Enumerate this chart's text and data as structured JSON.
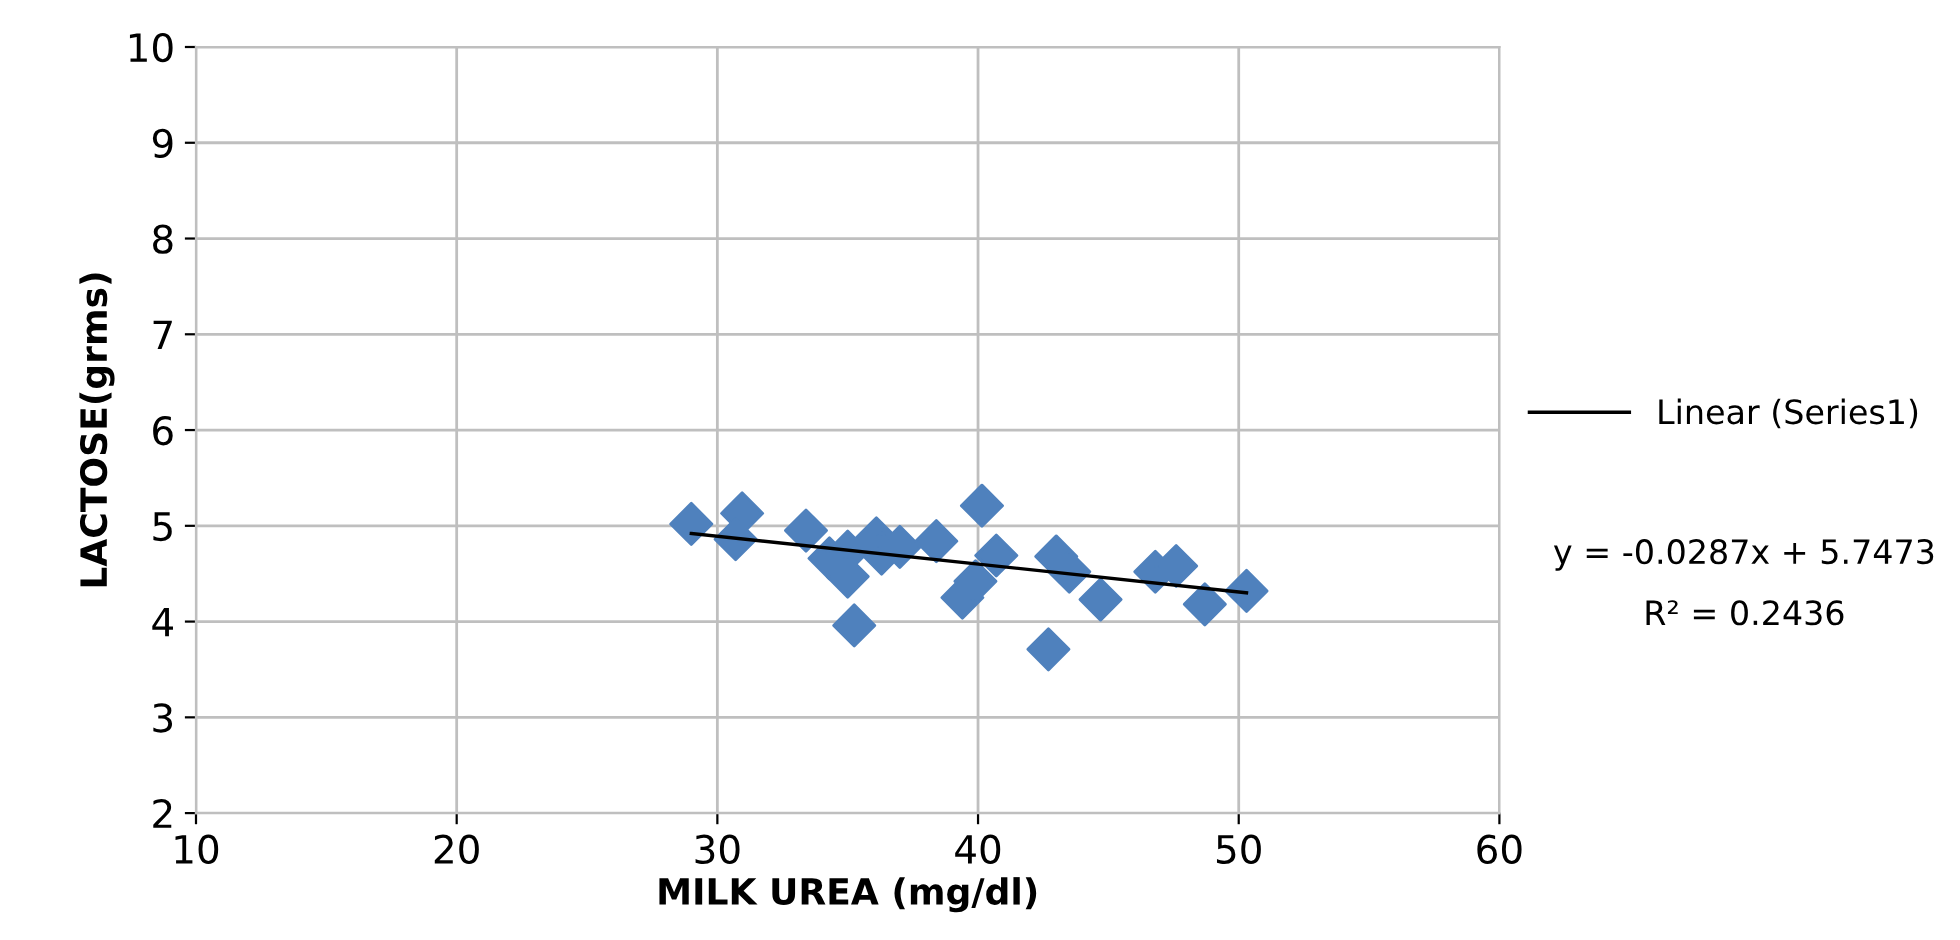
{
  "chart_data": {
    "type": "scatter",
    "xlabel": "MILK UREA (mg/dl)",
    "ylabel": "LACTOSE(grms)",
    "xlim": [
      10,
      60
    ],
    "xticks": [
      10,
      20,
      30,
      40,
      50,
      60
    ],
    "ylim": [
      2,
      10
    ],
    "yticks": [
      2,
      3,
      4,
      5,
      6,
      7,
      8,
      9,
      10
    ],
    "grid": true,
    "legend": "right",
    "marker": "diamond",
    "series": [
      {
        "color": "#4f81bd",
        "x": [
          29.0,
          30.95,
          30.7,
          33.4,
          34.3,
          35.0,
          35.0,
          35.25,
          36.1,
          36.3,
          37.0,
          38.4,
          39.4,
          40.15,
          39.9,
          40.7,
          42.7,
          43.0,
          43.5,
          44.7,
          46.8,
          47.6,
          48.7,
          50.3
        ],
        "values": [
          5.02,
          5.13,
          4.86,
          4.95,
          4.66,
          4.73,
          4.47,
          3.96,
          4.87,
          4.71,
          4.78,
          4.84,
          4.25,
          5.21,
          4.42,
          4.69,
          3.71,
          4.68,
          4.52,
          4.23,
          4.52,
          4.58,
          4.18,
          4.32
        ]
      },
      {
        "type": "line",
        "name": "Linear (Series1)",
        "color": "#000000",
        "x": [
          29.0,
          50.3
        ],
        "values": [
          4.92,
          4.3
        ],
        "marker": "none"
      }
    ],
    "annotations": [
      "y = -0.0287x + 5.7473",
      "R² = 0.2436"
    ]
  }
}
